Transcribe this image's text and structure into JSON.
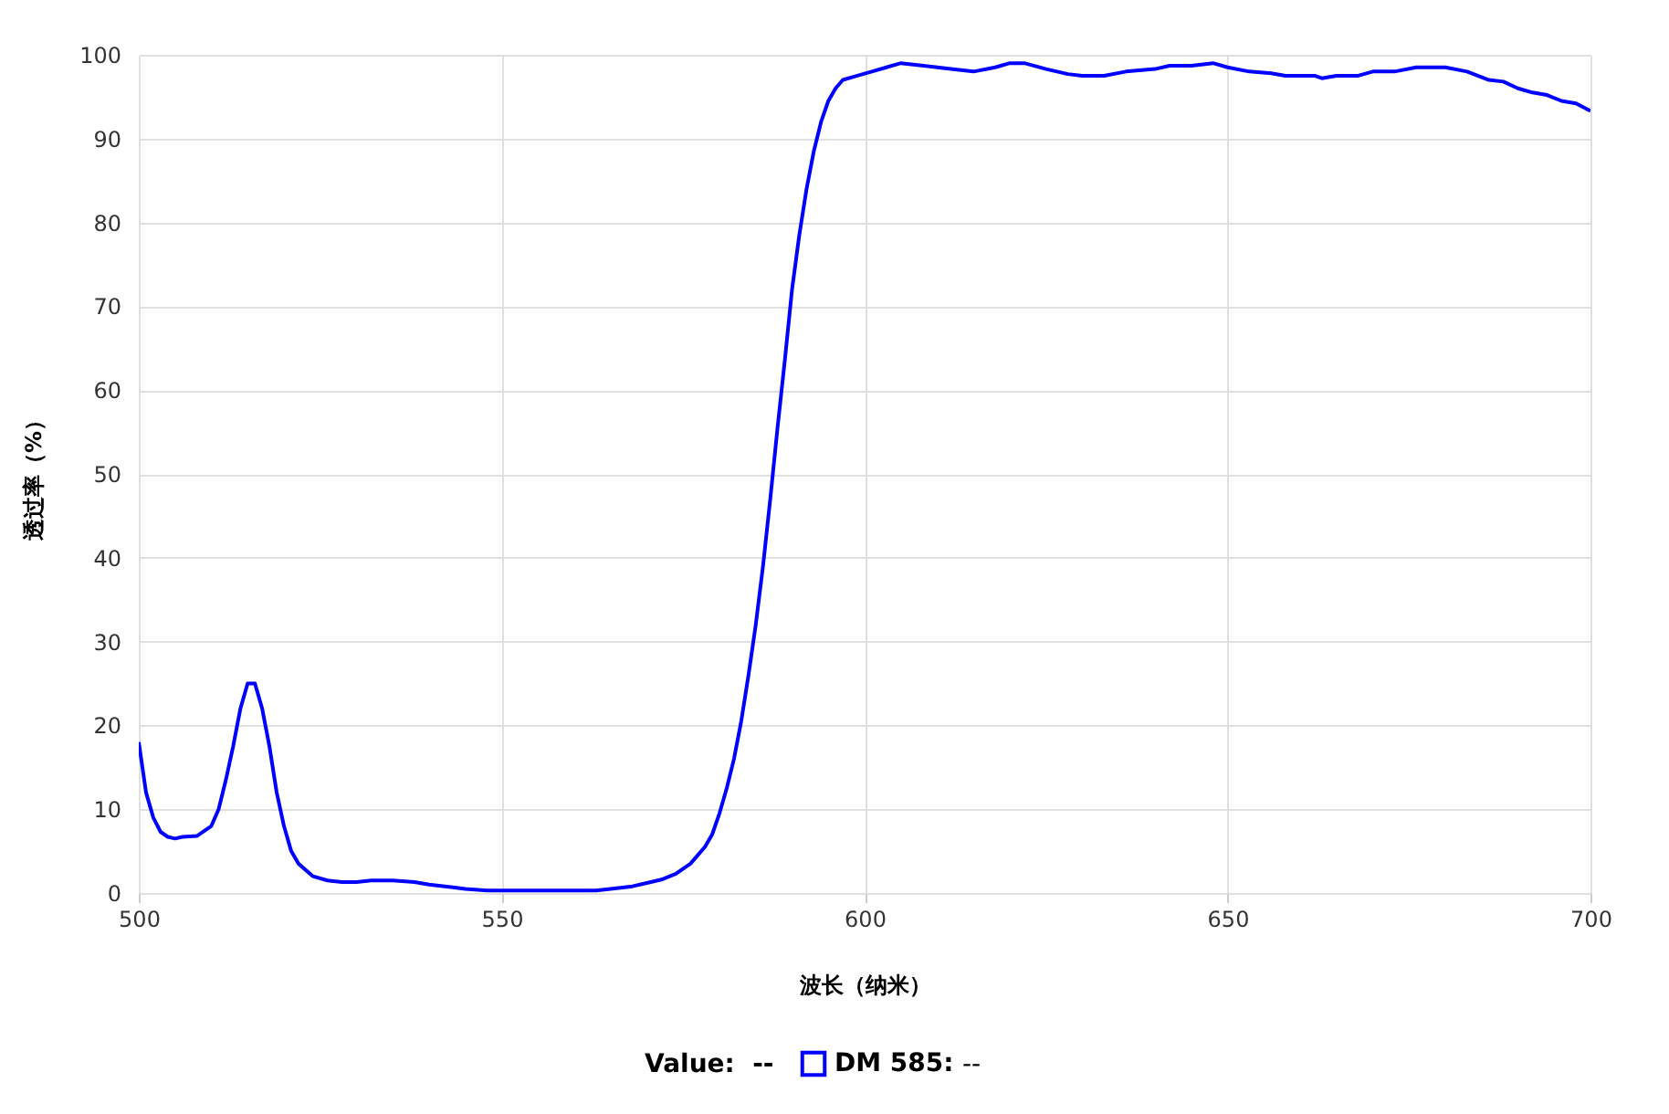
{
  "chart_data": {
    "type": "line",
    "xlabel": "波长（纳米）",
    "ylabel": "透过率（%）",
    "x": [
      500,
      501,
      502,
      503,
      504,
      505,
      506,
      508,
      510,
      511,
      512,
      513,
      514,
      515,
      516,
      517,
      518,
      519,
      520,
      521,
      522,
      524,
      526,
      528,
      530,
      532,
      535,
      538,
      540,
      543,
      545,
      548,
      550,
      555,
      560,
      563,
      565,
      568,
      570,
      572,
      574,
      576,
      578,
      579,
      580,
      581,
      582,
      583,
      584,
      585,
      586,
      587,
      588,
      589,
      590,
      591,
      592,
      593,
      594,
      595,
      596,
      597,
      599,
      601,
      603,
      605,
      607,
      610,
      613,
      615,
      618,
      620,
      622,
      625,
      628,
      630,
      633,
      636,
      640,
      642,
      645,
      648,
      650,
      653,
      656,
      658,
      662,
      663,
      665,
      668,
      670,
      673,
      676,
      680,
      683,
      686,
      688,
      690,
      692,
      694,
      696,
      698,
      700
    ],
    "series": [
      {
        "name": "DM 585:",
        "color": "#0000ff",
        "values": [
          18,
          12,
          9,
          7.3,
          6.7,
          6.5,
          6.7,
          6.8,
          8,
          10,
          13.5,
          17.5,
          22,
          25,
          25,
          22,
          17.5,
          12,
          8,
          5,
          3.5,
          2,
          1.5,
          1.3,
          1.3,
          1.5,
          1.5,
          1.3,
          1,
          0.7,
          0.5,
          0.3,
          0.3,
          0.3,
          0.3,
          0.3,
          0.5,
          0.8,
          1.2,
          1.6,
          2.3,
          3.5,
          5.5,
          7,
          9.5,
          12.5,
          16,
          20.5,
          26,
          32,
          39,
          47,
          55.5,
          63.5,
          72,
          78.5,
          84,
          88.5,
          92,
          94.5,
          96,
          97,
          97.5,
          98,
          98.5,
          99,
          98.8,
          98.5,
          98.2,
          98,
          98.5,
          99,
          99,
          98.3,
          97.7,
          97.5,
          97.5,
          98,
          98.3,
          98.7,
          98.7,
          99,
          98.5,
          98,
          97.8,
          97.5,
          97.5,
          97.2,
          97.5,
          97.5,
          98,
          98,
          98.5,
          98.5,
          98,
          97,
          96.8,
          96,
          95.5,
          95.2,
          94.5,
          94.2,
          93.3
        ]
      }
    ],
    "xlim": [
      500,
      700
    ],
    "xticks": [
      500,
      550,
      600,
      650,
      700
    ],
    "ylim": [
      0,
      100
    ],
    "yticks": [
      0,
      10,
      20,
      30,
      40,
      50,
      60,
      70,
      80,
      90,
      100
    ],
    "grid": true,
    "legend": "bottom",
    "marker": "none",
    "line_style": "solid",
    "annotations": [
      "Value:  --",
      "--"
    ]
  }
}
